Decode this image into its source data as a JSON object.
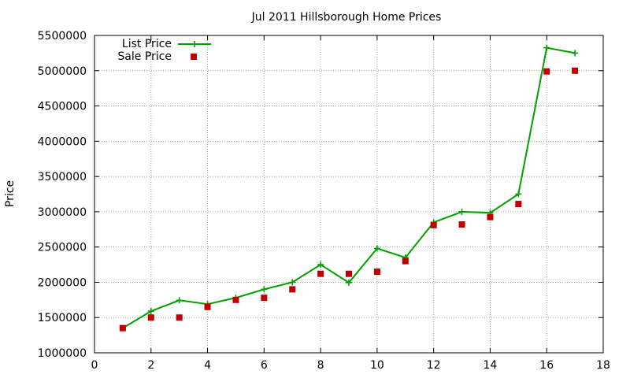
{
  "chart_data": {
    "type": "line",
    "title": "Jul 2011 Hillsborough Home Prices",
    "xlabel": "",
    "ylabel": "Price",
    "xlim": [
      0,
      18
    ],
    "ylim": [
      1000000,
      5500000
    ],
    "xticks": [
      0,
      2,
      4,
      6,
      8,
      10,
      12,
      14,
      16,
      18
    ],
    "yticks": [
      1000000,
      1500000,
      2000000,
      2500000,
      3000000,
      3500000,
      4000000,
      4500000,
      5000000,
      5500000
    ],
    "grid": true,
    "legend_position": "top-left",
    "series": [
      {
        "name": "List Price",
        "style": "line+points",
        "marker": "plus",
        "color": "#00a000",
        "x": [
          1,
          2,
          3,
          4,
          5,
          6,
          7,
          8,
          9,
          10,
          11,
          12,
          13,
          14,
          15,
          16,
          17
        ],
        "y": [
          1350000,
          1590000,
          1745000,
          1690000,
          1780000,
          1900000,
          2000000,
          2250000,
          1995000,
          2480000,
          2350000,
          2850000,
          3000000,
          2985000,
          3250000,
          5325000,
          5250000
        ]
      },
      {
        "name": "Sale Price",
        "style": "points",
        "marker": "square",
        "color": "#c00000",
        "x": [
          1,
          2,
          3,
          4,
          5,
          6,
          7,
          8,
          9,
          10,
          11,
          12,
          13,
          14,
          15,
          16,
          17
        ],
        "y": [
          1350000,
          1500000,
          1500000,
          1650000,
          1750000,
          1780000,
          1900000,
          2120000,
          2120000,
          2150000,
          2300000,
          2810000,
          2820000,
          2925000,
          3110000,
          4990000,
          5000000
        ]
      }
    ]
  }
}
